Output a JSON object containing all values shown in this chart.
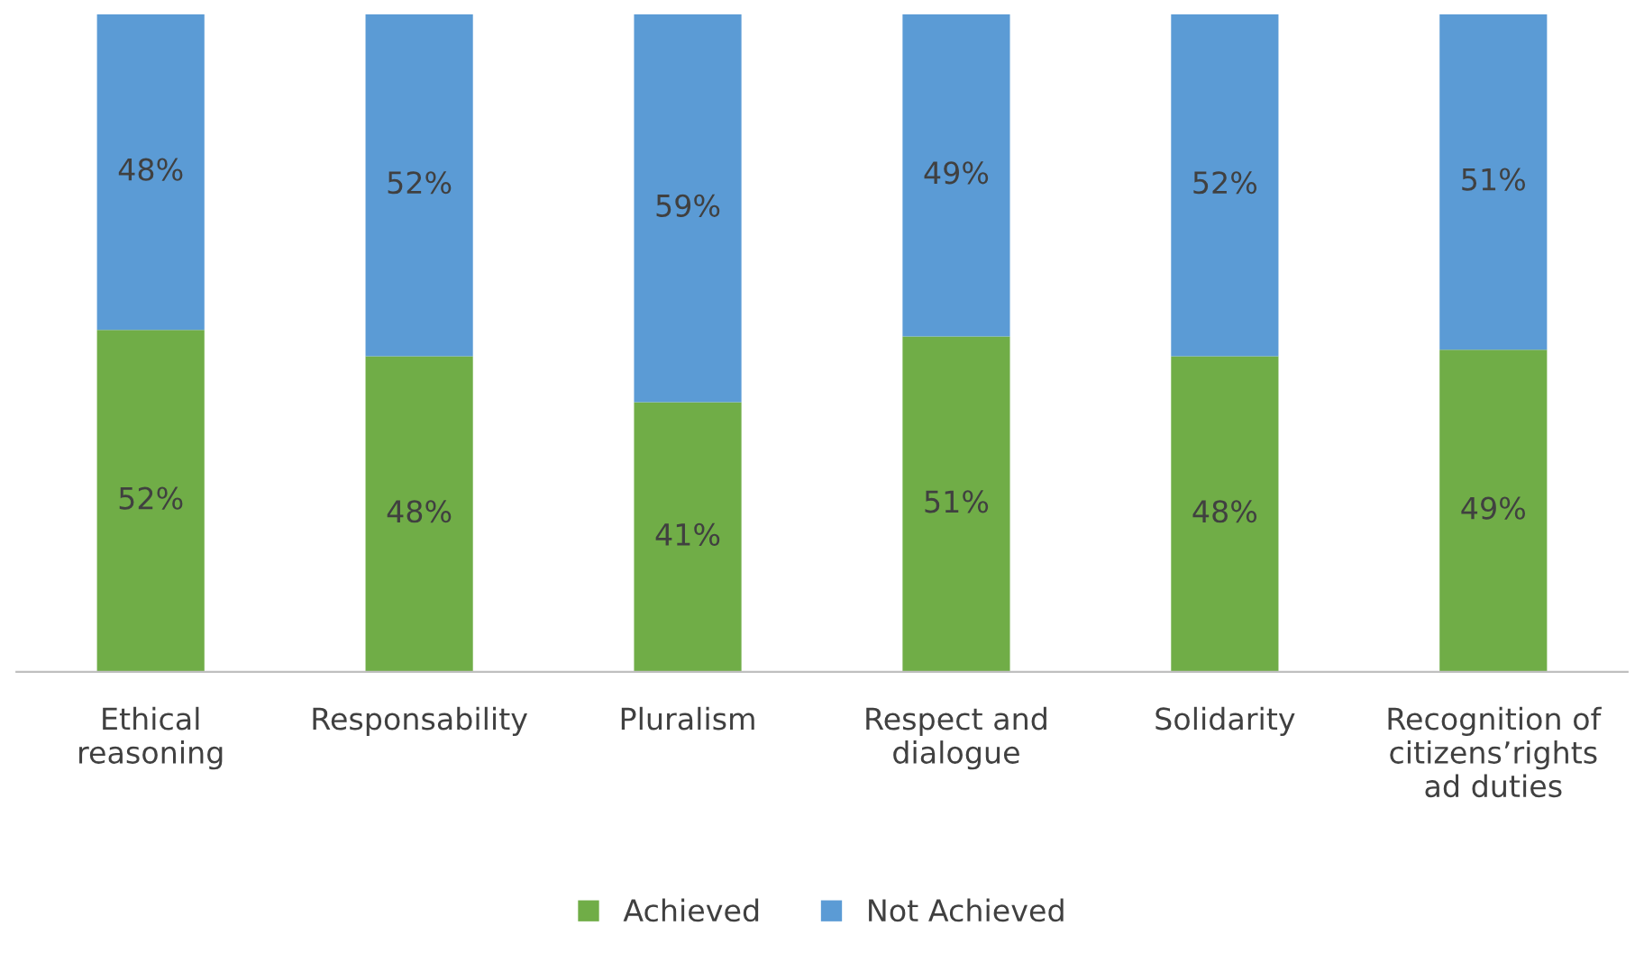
{
  "chart_data": {
    "type": "bar",
    "stacked": true,
    "legend": "bottom",
    "grid": false,
    "categories": [
      "Ethical\nreasoning",
      "Responsability",
      "Pluralism",
      "Respect and\ndialogue",
      "Solidarity",
      "Recognition of\ncitizens’rights\nad duties"
    ],
    "series": [
      {
        "name": "Achieved",
        "color": "#70ad47",
        "values": [
          52,
          48,
          41,
          51,
          48,
          49
        ],
        "value_labels": [
          "52%",
          "48%",
          "41%",
          "51%",
          "48%",
          "49%"
        ]
      },
      {
        "name": "Not Achieved",
        "color": "#5b9bd5",
        "values": [
          48,
          52,
          59,
          49,
          52,
          51
        ],
        "value_labels": [
          "48%",
          "52%",
          "59%",
          "49%",
          "52%",
          "51%"
        ]
      }
    ]
  }
}
